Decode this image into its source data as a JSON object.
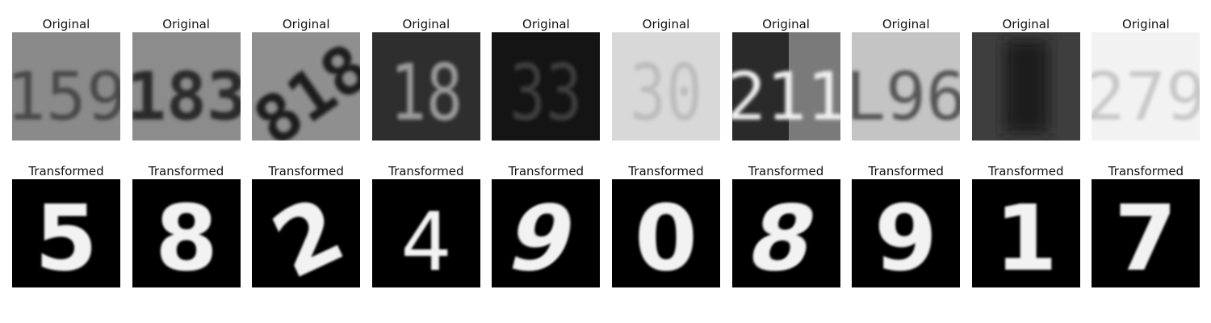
{
  "rows": [
    {
      "kind": "original",
      "label": "Original",
      "panels": [
        {
          "title": "Original",
          "digits": "159",
          "bg": "#8a8a8a",
          "fg": "#4a4a4a",
          "style": "plain"
        },
        {
          "title": "Original",
          "digits": "183",
          "bg": "#8c8c8c",
          "fg": "#2a2a2a",
          "style": "bold"
        },
        {
          "title": "Original",
          "digits": "818",
          "bg": "#8f8f8f",
          "fg": "#1e1e1e",
          "style": "rotated"
        },
        {
          "title": "Original",
          "digits": "18",
          "bg": "#2e2e2e",
          "fg": "#9a9a9a",
          "style": "dark"
        },
        {
          "title": "Original",
          "digits": "33",
          "bg": "#141414",
          "fg": "#3c3c3c",
          "style": "dark"
        },
        {
          "title": "Original",
          "digits": "30",
          "bg": "#d8d8d8",
          "fg": "#bdbdbd",
          "style": "faint"
        },
        {
          "title": "Original",
          "digits": "211",
          "bg": "#6a6a6a",
          "fg": "#f0f0f0",
          "style": "split"
        },
        {
          "title": "Original",
          "digits": "L96",
          "bg": "#c4c4c4",
          "fg": "#555555",
          "style": "plain"
        },
        {
          "title": "Original",
          "digits": "",
          "bg": "#3e3e3e",
          "fg": "#2a2a2a",
          "style": "blur"
        },
        {
          "title": "Original",
          "digits": "279",
          "bg": "#f2f2f2",
          "fg": "#c8c8c8",
          "style": "faint"
        }
      ]
    },
    {
      "kind": "transformed",
      "label": "Transformed",
      "panels": [
        {
          "title": "Transformed",
          "digit": "5",
          "style": "mnist"
        },
        {
          "title": "Transformed",
          "digit": "8",
          "style": "mnist"
        },
        {
          "title": "Transformed",
          "digit": "2",
          "style": "mnist-rot"
        },
        {
          "title": "Transformed",
          "digit": "4",
          "style": "mnist-thin"
        },
        {
          "title": "Transformed",
          "digit": "9",
          "style": "mnist-slant"
        },
        {
          "title": "Transformed",
          "digit": "0",
          "style": "mnist"
        },
        {
          "title": "Transformed",
          "digit": "8",
          "style": "mnist-slant"
        },
        {
          "title": "Transformed",
          "digit": "9",
          "style": "mnist"
        },
        {
          "title": "Transformed",
          "digit": "1",
          "style": "mnist"
        },
        {
          "title": "Transformed",
          "digit": "7",
          "style": "mnist"
        }
      ]
    }
  ]
}
